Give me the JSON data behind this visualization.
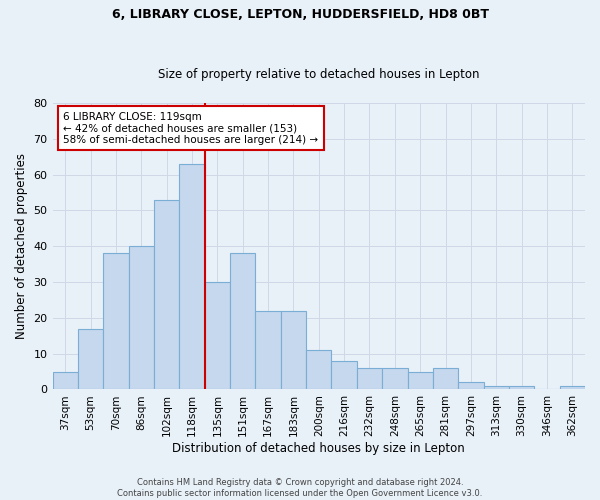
{
  "title1": "6, LIBRARY CLOSE, LEPTON, HUDDERSFIELD, HD8 0BT",
  "title2": "Size of property relative to detached houses in Lepton",
  "xlabel": "Distribution of detached houses by size in Lepton",
  "ylabel": "Number of detached properties",
  "categories": [
    "37sqm",
    "53sqm",
    "70sqm",
    "86sqm",
    "102sqm",
    "118sqm",
    "135sqm",
    "151sqm",
    "167sqm",
    "183sqm",
    "200sqm",
    "216sqm",
    "232sqm",
    "248sqm",
    "265sqm",
    "281sqm",
    "297sqm",
    "313sqm",
    "330sqm",
    "346sqm",
    "362sqm"
  ],
  "values": [
    5,
    17,
    38,
    40,
    53,
    63,
    30,
    38,
    22,
    22,
    11,
    8,
    6,
    6,
    5,
    6,
    2,
    1,
    1,
    0,
    1
  ],
  "bar_color": "#c5d8ed",
  "bar_edge_color": "#7aaed4",
  "grid_color": "#d0d8e8",
  "background_color": "#e8f0f8",
  "vline_x_index": 5,
  "vline_color": "#cc0000",
  "annotation_line1": "6 LIBRARY CLOSE: 119sqm",
  "annotation_line2": "← 42% of detached houses are smaller (153)",
  "annotation_line3": "58% of semi-detached houses are larger (214) →",
  "annotation_box_color": "#ffffff",
  "annotation_box_edge": "#cc0000",
  "footer": "Contains HM Land Registry data © Crown copyright and database right 2024.\nContains public sector information licensed under the Open Government Licence v3.0.",
  "ylim": [
    0,
    80
  ],
  "yticks": [
    0,
    10,
    20,
    30,
    40,
    50,
    60,
    70,
    80
  ]
}
